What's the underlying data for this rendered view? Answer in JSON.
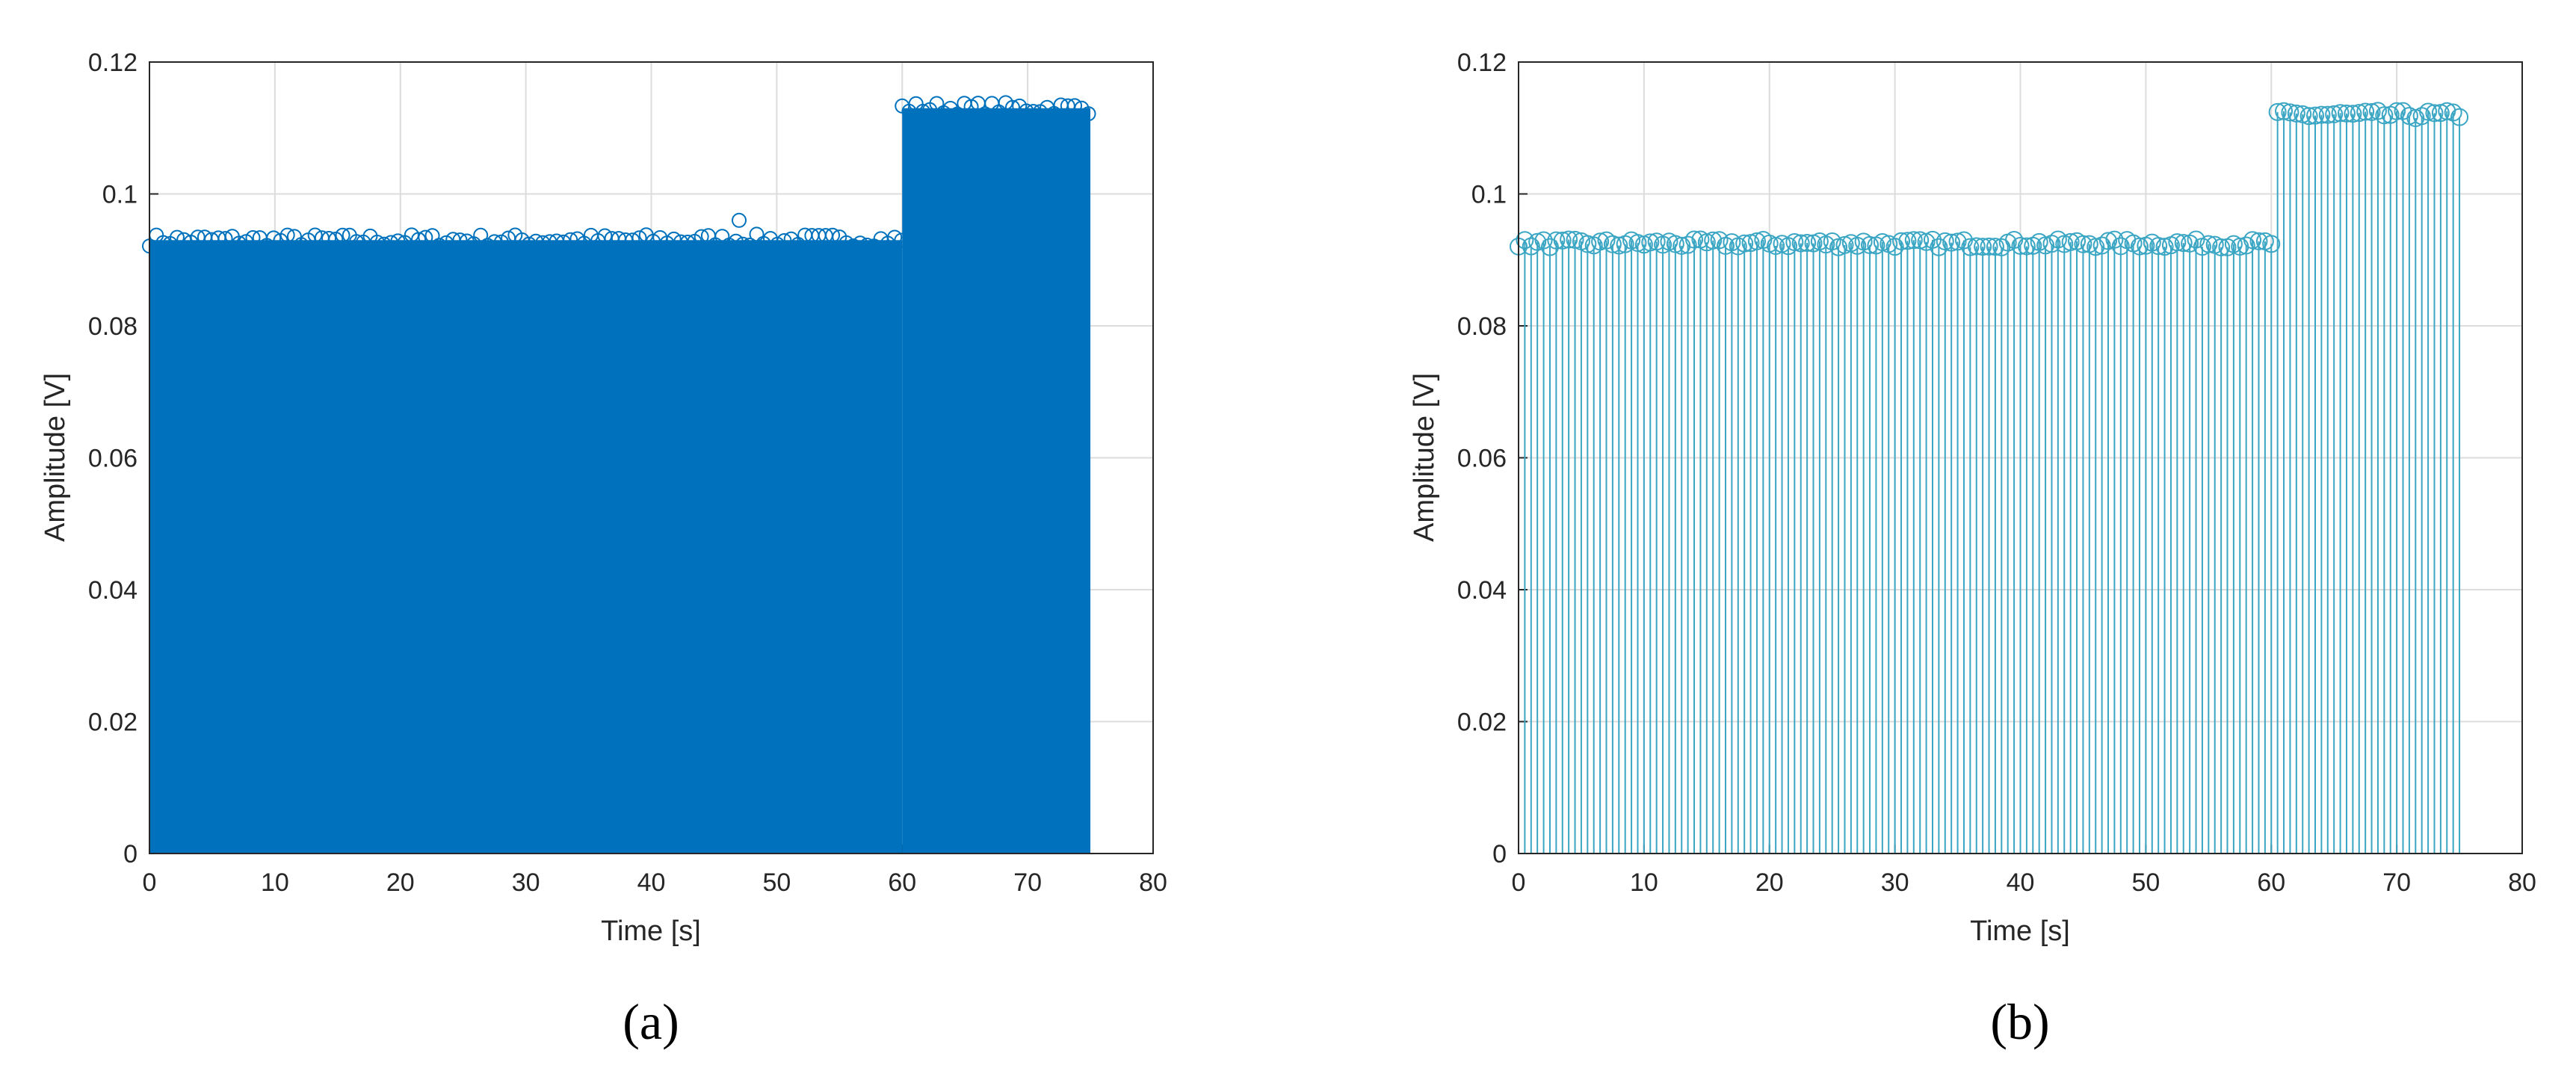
{
  "colors": {
    "stem": "#0072BD",
    "stem_light": "#3aa6c4",
    "grid": "#dcdcdc",
    "axis": "#262626"
  },
  "chart_data": [
    {
      "type": "stem",
      "panel_label": "(a)",
      "xlabel": "Time [s]",
      "ylabel": "Amplitude [V]",
      "xlim": [
        0,
        80
      ],
      "ylim": [
        0,
        0.12
      ],
      "xticks": [
        "0",
        "10",
        "20",
        "30",
        "40",
        "50",
        "60",
        "70",
        "80"
      ],
      "yticks": [
        "0",
        "0.02",
        "0.04",
        "0.06",
        "0.08",
        "0.1",
        "0.12"
      ],
      "grid": true,
      "marker": "circle",
      "dense": true,
      "sampling": "continuous dense stems",
      "segments": [
        {
          "x_start": 0,
          "x_end": 60,
          "level": 0.093
        },
        {
          "x_start": 60,
          "x_end": 75,
          "level": 0.113
        }
      ],
      "outliers": [
        {
          "x": 47,
          "y": 0.096
        }
      ]
    },
    {
      "type": "stem",
      "panel_label": "(b)",
      "xlabel": "Time [s]",
      "ylabel": "Amplitude [V]",
      "xlim": [
        0,
        80
      ],
      "ylim": [
        0,
        0.12
      ],
      "xticks": [
        "0",
        "10",
        "20",
        "30",
        "40",
        "50",
        "60",
        "70",
        "80"
      ],
      "yticks": [
        "0",
        "0.02",
        "0.04",
        "0.06",
        "0.08",
        "0.1",
        "0.12"
      ],
      "grid": true,
      "marker": "circle",
      "dense": false,
      "sampling": "one stem every 0.5 s",
      "segments": [
        {
          "x_start": 0,
          "x_end": 60,
          "level": 0.0925
        },
        {
          "x_start": 60.5,
          "x_end": 75,
          "level": 0.112
        }
      ]
    }
  ]
}
